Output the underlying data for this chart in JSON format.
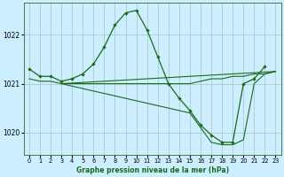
{
  "xlabel": "Graphe pression niveau de la mer (hPa)",
  "background_color": "#cceeff",
  "grid_color": "#aacccc",
  "line_color": "#1a6b1a",
  "ylim": [
    1019.55,
    1022.65
  ],
  "xlim": [
    -0.5,
    23.5
  ],
  "yticks": [
    1020,
    1021,
    1022
  ],
  "xticks": [
    0,
    1,
    2,
    3,
    4,
    5,
    6,
    7,
    8,
    9,
    10,
    11,
    12,
    13,
    14,
    15,
    16,
    17,
    18,
    19,
    20,
    21,
    22,
    23
  ],
  "line1_x": [
    0,
    1,
    2,
    3,
    4,
    5,
    6,
    7,
    8,
    9,
    10,
    11,
    12,
    13,
    14,
    15,
    16,
    17,
    18,
    19,
    20,
    21,
    22
  ],
  "line1_y": [
    1021.3,
    1021.15,
    1021.15,
    1021.05,
    1021.1,
    1021.2,
    1021.4,
    1021.75,
    1022.2,
    1022.45,
    1022.5,
    1022.1,
    1021.55,
    1021.0,
    1020.7,
    1020.45,
    1020.15,
    1019.95,
    1019.8,
    1019.8,
    1021.0,
    1021.1,
    1021.35
  ],
  "line2_x": [
    0,
    1,
    2,
    3,
    4,
    5,
    6,
    7,
    8,
    9,
    10,
    11,
    12,
    13,
    14,
    15,
    16,
    17,
    18,
    19,
    20,
    21,
    22,
    23
  ],
  "line2_y": [
    1021.1,
    1021.05,
    1021.05,
    1021.0,
    1021.0,
    1021.0,
    1021.0,
    1021.0,
    1021.0,
    1021.0,
    1021.0,
    1021.0,
    1021.0,
    1021.0,
    1021.0,
    1021.0,
    1021.05,
    1021.1,
    1021.1,
    1021.15,
    1021.15,
    1021.2,
    1021.2,
    1021.25
  ],
  "line3_x": [
    3,
    23
  ],
  "line3_y": [
    1021.0,
    1021.25
  ],
  "line4_x": [
    3,
    15,
    17,
    18,
    19,
    20,
    21,
    22,
    23
  ],
  "line4_y": [
    1021.0,
    1020.4,
    1019.8,
    1019.75,
    1019.75,
    1019.85,
    1021.0,
    1021.2,
    1021.25
  ]
}
